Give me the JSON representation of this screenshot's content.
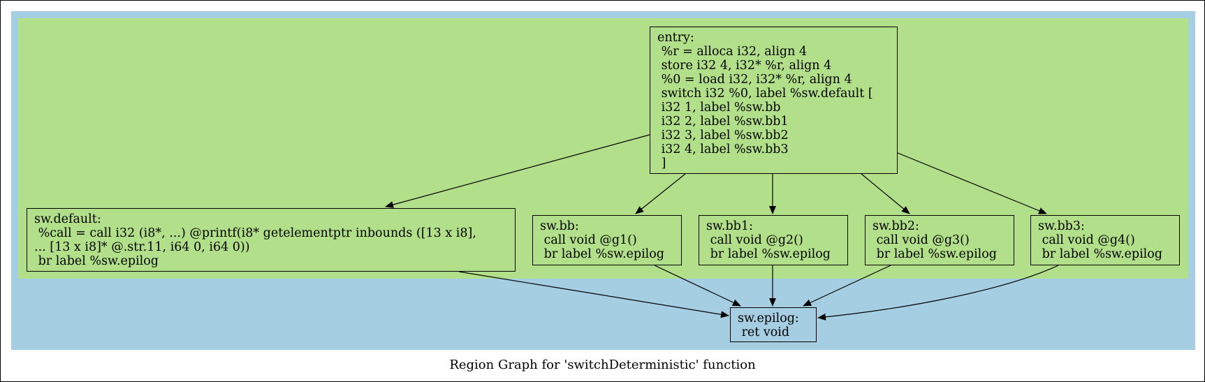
{
  "caption": "Region Graph for 'switchDeterministic' function",
  "colors": {
    "outer_region": "#a6cee3",
    "inner_region": "#b2df8a",
    "edge": "#000000"
  },
  "nodes": {
    "entry": "entry:\n %r = alloca i32, align 4\n store i32 4, i32* %r, align 4\n %0 = load i32, i32* %r, align 4\n switch i32 %0, label %sw.default [\n i32 1, label %sw.bb\n i32 2, label %sw.bb1\n i32 3, label %sw.bb2\n i32 4, label %sw.bb3\n ]",
    "sw_default": "sw.default:\n %call = call i32 (i8*, ...) @printf(i8* getelementptr inbounds ([13 x i8],\n... [13 x i8]* @.str.11, i64 0, i64 0))\n br label %sw.epilog",
    "sw_bb": "sw.bb:\n call void @g1()\n br label %sw.epilog",
    "sw_bb1": "sw.bb1:\n call void @g2()\n br label %sw.epilog",
    "sw_bb2": "sw.bb2:\n call void @g3()\n br label %sw.epilog",
    "sw_bb3": "sw.bb3:\n call void @g4()\n br label %sw.epilog",
    "sw_epilog": "sw.epilog:\n ret void"
  }
}
